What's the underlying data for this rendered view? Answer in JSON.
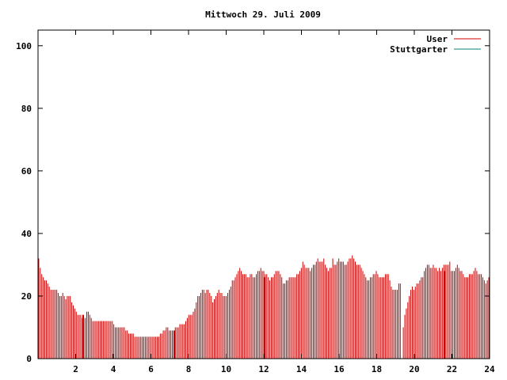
{
  "chart_data": {
    "type": "bar",
    "title": "Mittwoch 29. Juli 2009",
    "xlabel": "",
    "ylabel": "",
    "xlim": [
      0,
      24
    ],
    "ylim": [
      0,
      105
    ],
    "xticks": [
      "2",
      "4",
      "6",
      "8",
      "10",
      "12",
      "14",
      "16",
      "18",
      "20",
      "22",
      "24"
    ],
    "yticks": [
      "0",
      "20",
      "40",
      "60",
      "80",
      "100"
    ],
    "grid": false,
    "legend_position": "top-right",
    "series": [
      {
        "name": "User",
        "color": "#cc0000",
        "values": [
          32,
          29,
          27,
          26,
          25,
          25,
          24,
          23,
          22,
          22,
          22,
          22,
          22,
          21,
          20,
          20,
          21,
          20,
          19,
          20,
          20,
          20,
          18,
          17,
          16,
          15,
          14,
          14,
          14,
          13,
          13,
          13,
          15,
          15,
          14,
          13,
          12,
          12,
          12,
          12,
          12,
          12,
          12,
          12,
          12,
          12,
          12,
          12,
          12,
          12,
          11,
          10,
          10,
          10,
          10,
          10,
          10,
          10,
          9,
          9,
          8,
          8,
          8,
          8,
          7,
          7,
          7,
          7,
          7,
          7,
          7,
          7,
          7,
          7,
          7,
          7,
          7,
          7,
          7,
          7,
          7,
          8,
          8,
          9,
          9,
          10,
          10,
          9,
          9,
          9,
          9,
          10,
          10,
          10,
          11,
          11,
          11,
          11,
          12,
          13,
          14,
          14,
          14,
          15,
          16,
          18,
          20,
          20,
          21,
          22,
          22,
          21,
          22,
          22,
          21,
          20,
          18,
          19,
          20,
          21,
          22,
          21,
          21,
          20,
          20,
          20,
          21,
          22,
          23,
          25,
          25,
          26,
          27,
          28,
          29,
          28,
          27,
          27,
          27,
          26,
          26,
          27,
          27,
          26,
          26,
          27,
          28,
          28,
          29,
          28,
          28,
          27,
          27,
          26,
          25,
          26,
          26,
          27,
          28,
          28,
          28,
          27,
          26,
          24,
          24,
          25,
          25,
          26,
          26,
          26,
          26,
          26,
          27,
          27,
          28,
          29,
          31,
          30,
          29,
          29,
          29,
          28,
          29,
          30,
          30,
          31,
          32,
          31,
          31,
          31,
          32,
          30,
          29,
          28,
          29,
          29,
          32,
          30,
          30,
          31,
          32,
          31,
          31,
          31,
          30,
          30,
          31,
          32,
          32,
          33,
          32,
          31,
          30,
          30,
          30,
          29,
          28,
          27,
          26,
          25,
          25,
          26,
          26,
          27,
          27,
          28,
          27,
          26,
          26,
          26,
          26,
          27,
          27,
          27,
          25,
          23,
          22,
          22,
          22,
          22,
          24,
          24,
          0,
          10,
          14,
          16,
          18,
          20,
          22,
          23,
          22,
          23,
          24,
          24,
          25,
          26,
          26,
          28,
          29,
          30,
          30,
          29,
          29,
          30,
          29,
          29,
          28,
          29,
          28,
          29,
          30,
          30,
          30,
          30,
          31,
          28,
          28,
          28,
          29,
          30,
          29,
          28,
          28,
          27,
          26,
          26,
          26,
          27,
          27,
          27,
          28,
          29,
          28,
          27,
          27,
          27,
          26,
          25,
          24,
          25,
          26
        ],
        "spikes": [
          {
            "x": 2.4,
            "value": 14
          },
          {
            "x": 7.25,
            "value": 9
          },
          {
            "x": 12.05,
            "value": 26
          },
          {
            "x": 21.6,
            "value": 28
          }
        ]
      },
      {
        "name": "Stuttgarter",
        "color": "#008080",
        "values": []
      }
    ]
  }
}
